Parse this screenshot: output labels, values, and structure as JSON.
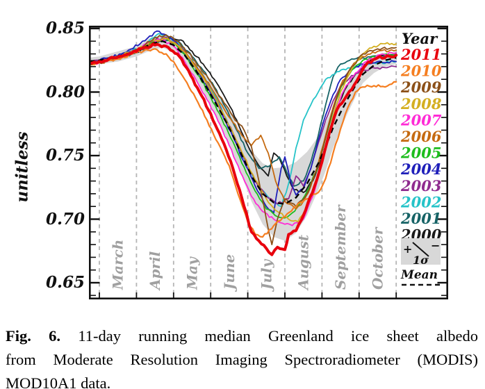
{
  "caption": {
    "label": "Fig. 6.",
    "line1": "11-day running median Greenland ice sheet albedo",
    "line2": "from Moderate Resolution Imaging Spectroradiometer (MODIS)",
    "line3": "MOD10A1 data."
  },
  "chart_data": {
    "type": "line",
    "title": "",
    "ylabel": "unitless",
    "ylim": [
      0.637,
      0.852
    ],
    "yticks": [
      "0.85",
      "0.80",
      "0.75",
      "0.70",
      "0.65"
    ],
    "ytick_values": [
      0.85,
      0.8,
      0.75,
      0.7,
      0.65
    ],
    "y_minor_step": 0.01,
    "x_axis": {
      "unit": "months after March 1",
      "gridlines_at": [
        0,
        1,
        2,
        3,
        4,
        5,
        6,
        7,
        8
      ],
      "labels": [
        "March",
        "April",
        "May",
        "June",
        "July",
        "August",
        "September",
        "October"
      ]
    },
    "grid_on": true,
    "legend_position": "inside-right",
    "colors": {
      "grid": "#b5b5b5",
      "month_label": "#a0a0a0",
      "band": "#d8d8d8",
      "mean": "#000000",
      "axis": "#111111"
    },
    "band": {
      "label": "+/- 1 sigma",
      "x": [
        -0.28,
        0,
        0.5,
        1,
        1.4,
        1.7,
        2,
        2.3,
        2.6,
        2.9,
        3.2,
        3.5,
        3.8,
        4.1,
        4.4,
        4.7,
        5,
        5.3,
        5.6,
        5.9,
        6.1,
        6.3,
        6.5,
        6.7,
        6.9,
        7.1,
        7.4,
        7.7,
        8
      ],
      "upper": [
        0.827,
        0.828,
        0.832,
        0.836,
        0.843,
        0.845,
        0.843,
        0.835,
        0.824,
        0.811,
        0.798,
        0.785,
        0.769,
        0.754,
        0.744,
        0.74,
        0.741,
        0.745,
        0.753,
        0.765,
        0.776,
        0.788,
        0.797,
        0.806,
        0.814,
        0.821,
        0.827,
        0.83,
        0.832
      ],
      "lower": [
        0.821,
        0.822,
        0.824,
        0.828,
        0.833,
        0.835,
        0.831,
        0.823,
        0.81,
        0.795,
        0.778,
        0.759,
        0.737,
        0.714,
        0.696,
        0.686,
        0.683,
        0.689,
        0.703,
        0.723,
        0.738,
        0.756,
        0.771,
        0.784,
        0.796,
        0.807,
        0.815,
        0.82,
        0.822
      ]
    },
    "mean": {
      "label": "Mean",
      "style": "dashed",
      "x": [
        -0.28,
        0,
        0.5,
        1,
        1.4,
        1.7,
        2,
        2.3,
        2.6,
        2.9,
        3.2,
        3.5,
        3.8,
        4.1,
        4.4,
        4.7,
        5,
        5.3,
        5.6,
        5.9,
        6.1,
        6.3,
        6.5,
        6.7,
        6.9,
        7.1,
        7.4,
        7.7,
        8
      ],
      "y": [
        0.824,
        0.825,
        0.828,
        0.832,
        0.838,
        0.84,
        0.837,
        0.829,
        0.817,
        0.803,
        0.788,
        0.772,
        0.753,
        0.734,
        0.72,
        0.713,
        0.712,
        0.717,
        0.728,
        0.744,
        0.757,
        0.772,
        0.784,
        0.795,
        0.805,
        0.814,
        0.821,
        0.825,
        0.827
      ]
    },
    "series": [
      {
        "name": "2000",
        "color": "#1a1a1a",
        "width": 1.8,
        "x": [
          -0.28,
          0,
          0.5,
          1,
          1.5,
          1.9,
          2.2,
          2.5,
          2.8,
          3.1,
          3.4,
          3.7,
          4,
          4.3,
          4.55,
          4.7,
          4.85,
          5.05,
          5.25,
          5.5,
          5.75,
          6,
          6.2,
          6.4,
          6.6,
          6.9,
          7.2,
          7.5,
          8
        ],
        "y": [
          0.824,
          0.825,
          0.827,
          0.831,
          0.839,
          0.843,
          0.841,
          0.832,
          0.822,
          0.81,
          0.795,
          0.778,
          0.758,
          0.742,
          0.734,
          0.752,
          0.748,
          0.734,
          0.723,
          0.721,
          0.73,
          0.748,
          0.768,
          0.787,
          0.801,
          0.814,
          0.823,
          0.828,
          0.83
        ]
      },
      {
        "name": "2001",
        "color": "#166366",
        "width": 1.8,
        "x": [
          -0.28,
          0,
          0.5,
          1,
          1.5,
          1.9,
          2.2,
          2.5,
          2.8,
          3.1,
          3.4,
          3.7,
          4,
          4.3,
          4.6,
          4.85,
          5.05,
          5.25,
          5.5,
          5.7,
          5.9,
          6.1,
          6.3,
          6.5,
          6.8,
          7.1,
          7.5,
          8
        ],
        "y": [
          0.823,
          0.824,
          0.827,
          0.831,
          0.839,
          0.842,
          0.838,
          0.828,
          0.817,
          0.804,
          0.788,
          0.77,
          0.752,
          0.74,
          0.742,
          0.749,
          0.737,
          0.726,
          0.73,
          0.745,
          0.766,
          0.79,
          0.812,
          0.822,
          0.826,
          0.827,
          0.828,
          0.828
        ]
      },
      {
        "name": "2002",
        "color": "#25c3c8",
        "width": 1.8,
        "x": [
          -0.28,
          0,
          0.5,
          1.2,
          1.6,
          1.9,
          2.2,
          2.5,
          2.8,
          3.1,
          3.4,
          3.7,
          4,
          4.3,
          4.6,
          4.9,
          5.1,
          5.3,
          5.5,
          5.7,
          5.9,
          6.1,
          6.4,
          6.7,
          7,
          7.4,
          8
        ],
        "y": [
          0.823,
          0.825,
          0.828,
          0.836,
          0.846,
          0.843,
          0.836,
          0.825,
          0.813,
          0.798,
          0.78,
          0.76,
          0.742,
          0.726,
          0.716,
          0.71,
          0.728,
          0.756,
          0.778,
          0.79,
          0.8,
          0.81,
          0.816,
          0.819,
          0.821,
          0.823,
          0.824
        ]
      },
      {
        "name": "2003",
        "color": "#8f2b8f",
        "width": 1.8,
        "x": [
          -0.28,
          0,
          0.5,
          1,
          1.5,
          1.8,
          2.1,
          2.4,
          2.7,
          3,
          3.3,
          3.6,
          3.9,
          4.2,
          4.5,
          4.8,
          5.1,
          5.3,
          5.5,
          5.7,
          5.9,
          6.1,
          6.3,
          6.5,
          6.8,
          7.1,
          7.5,
          8
        ],
        "y": [
          0.824,
          0.825,
          0.828,
          0.833,
          0.841,
          0.843,
          0.838,
          0.828,
          0.816,
          0.801,
          0.785,
          0.768,
          0.748,
          0.73,
          0.718,
          0.712,
          0.716,
          0.734,
          0.726,
          0.74,
          0.76,
          0.778,
          0.793,
          0.805,
          0.813,
          0.817,
          0.819,
          0.82
        ]
      },
      {
        "name": "2004",
        "color": "#1f1fba",
        "width": 1.8,
        "x": [
          -0.28,
          0,
          0.6,
          1.1,
          1.55,
          1.8,
          2.1,
          2.4,
          2.7,
          3,
          3.3,
          3.6,
          3.9,
          4.2,
          4.5,
          4.7,
          4.9,
          5,
          5.15,
          5.3,
          5.5,
          5.7,
          5.9,
          6.1,
          6.3,
          6.5,
          6.8,
          7.1,
          7.5,
          8
        ],
        "y": [
          0.823,
          0.825,
          0.83,
          0.838,
          0.848,
          0.845,
          0.838,
          0.827,
          0.814,
          0.799,
          0.783,
          0.765,
          0.745,
          0.726,
          0.71,
          0.705,
          0.74,
          0.749,
          0.73,
          0.719,
          0.724,
          0.74,
          0.762,
          0.782,
          0.798,
          0.81,
          0.818,
          0.822,
          0.824,
          0.824
        ]
      },
      {
        "name": "2005",
        "color": "#1dbd1d",
        "width": 1.8,
        "x": [
          -0.28,
          0,
          0.5,
          1,
          1.5,
          1.8,
          2.1,
          2.4,
          2.7,
          3,
          3.3,
          3.6,
          3.9,
          4.2,
          4.5,
          4.8,
          5,
          5.2,
          5.4,
          5.6,
          5.9,
          6.1,
          6.3,
          6.5,
          6.8,
          7.1,
          7.5,
          8
        ],
        "y": [
          0.822,
          0.824,
          0.827,
          0.832,
          0.84,
          0.842,
          0.836,
          0.825,
          0.812,
          0.796,
          0.779,
          0.761,
          0.741,
          0.722,
          0.708,
          0.702,
          0.701,
          0.705,
          0.712,
          0.722,
          0.742,
          0.764,
          0.786,
          0.803,
          0.817,
          0.825,
          0.829,
          0.83
        ]
      },
      {
        "name": "2006",
        "color": "#c56a11",
        "width": 1.8,
        "x": [
          -0.28,
          0,
          0.5,
          1,
          1.5,
          1.8,
          2.1,
          2.4,
          2.7,
          3,
          3.3,
          3.6,
          3.9,
          4.1,
          4.35,
          4.55,
          4.75,
          5,
          5.3,
          5.5,
          5.7,
          5.9,
          6.1,
          6.3,
          6.5,
          6.8,
          7.1,
          7.5,
          8
        ],
        "y": [
          0.822,
          0.823,
          0.826,
          0.831,
          0.84,
          0.842,
          0.837,
          0.828,
          0.817,
          0.804,
          0.79,
          0.776,
          0.764,
          0.758,
          0.766,
          0.752,
          0.73,
          0.714,
          0.708,
          0.714,
          0.726,
          0.744,
          0.766,
          0.788,
          0.805,
          0.82,
          0.828,
          0.832,
          0.833
        ]
      },
      {
        "name": "2007",
        "color": "#ff2bd6",
        "width": 1.8,
        "x": [
          -0.28,
          0,
          0.5,
          1,
          1.4,
          1.7,
          2,
          2.3,
          2.6,
          2.9,
          3.2,
          3.5,
          3.8,
          4.1,
          4.4,
          4.7,
          5,
          5.2,
          5.5,
          5.8,
          6,
          6.2,
          6.4,
          6.6,
          6.9,
          7.2,
          7.5,
          8
        ],
        "y": [
          0.822,
          0.823,
          0.827,
          0.833,
          0.84,
          0.841,
          0.836,
          0.824,
          0.81,
          0.794,
          0.777,
          0.758,
          0.737,
          0.718,
          0.706,
          0.7,
          0.696,
          0.695,
          0.7,
          0.722,
          0.745,
          0.768,
          0.788,
          0.802,
          0.815,
          0.824,
          0.829,
          0.831
        ]
      },
      {
        "name": "2008",
        "color": "#d4af21",
        "width": 1.8,
        "x": [
          -0.28,
          0,
          0.5,
          1,
          1.5,
          1.8,
          2.1,
          2.4,
          2.7,
          3,
          3.3,
          3.6,
          3.9,
          4.2,
          4.5,
          4.8,
          5.1,
          5.35,
          5.6,
          5.9,
          6.1,
          6.3,
          6.5,
          6.8,
          7.1,
          7.4,
          7.7,
          8
        ],
        "y": [
          0.823,
          0.824,
          0.828,
          0.833,
          0.841,
          0.842,
          0.837,
          0.827,
          0.815,
          0.801,
          0.785,
          0.768,
          0.749,
          0.731,
          0.716,
          0.706,
          0.7,
          0.698,
          0.71,
          0.734,
          0.758,
          0.781,
          0.8,
          0.818,
          0.83,
          0.836,
          0.838,
          0.838
        ]
      },
      {
        "name": "2009",
        "color": "#8c5018",
        "width": 1.8,
        "x": [
          -0.28,
          0,
          0.5,
          1.1,
          1.5,
          1.8,
          2.1,
          2.4,
          2.7,
          3,
          3.3,
          3.6,
          3.9,
          4.1,
          4.3,
          4.5,
          4.65,
          4.8,
          5,
          5.3,
          5.6,
          5.9,
          6.1,
          6.3,
          6.5,
          6.8,
          7.1,
          7.5,
          8
        ],
        "y": [
          0.822,
          0.823,
          0.827,
          0.834,
          0.843,
          0.845,
          0.84,
          0.831,
          0.82,
          0.808,
          0.795,
          0.781,
          0.77,
          0.757,
          0.73,
          0.7,
          0.68,
          0.7,
          0.716,
          0.71,
          0.72,
          0.742,
          0.764,
          0.786,
          0.804,
          0.82,
          0.83,
          0.834,
          0.835
        ]
      },
      {
        "name": "2010",
        "color": "#f57e20",
        "width": 2.2,
        "x": [
          -0.28,
          0,
          0.5,
          1,
          1.5,
          1.8,
          2,
          2.3,
          2.6,
          2.9,
          3.2,
          3.5,
          3.8,
          4,
          4.2,
          4.4,
          4.7,
          5,
          5.3,
          5.6,
          5.9,
          6.1,
          6.3,
          6.5,
          6.7,
          6.9,
          7.1,
          7.4,
          7.7,
          8
        ],
        "y": [
          0.822,
          0.823,
          0.826,
          0.831,
          0.834,
          0.83,
          0.824,
          0.81,
          0.795,
          0.778,
          0.76,
          0.742,
          0.715,
          0.698,
          0.688,
          0.686,
          0.695,
          0.702,
          0.71,
          0.716,
          0.721,
          0.732,
          0.752,
          0.771,
          0.788,
          0.8,
          0.804,
          0.805,
          0.804,
          0.808
        ]
      },
      {
        "name": "2011",
        "color": "#e8000d",
        "width": 4,
        "x": [
          -0.28,
          0,
          0.4,
          0.8,
          1.2,
          1.5,
          1.8,
          2.1,
          2.4,
          2.7,
          3,
          3.3,
          3.6,
          3.9,
          4.1,
          4.3,
          4.5,
          4.65,
          4.8,
          5,
          5.1,
          5.3,
          5.5,
          5.8,
          6,
          6.2,
          6.4,
          6.6,
          6.8,
          7,
          7.2,
          7.5,
          8
        ],
        "y": [
          0.823,
          0.824,
          0.827,
          0.83,
          0.835,
          0.837,
          0.836,
          0.83,
          0.817,
          0.8,
          0.783,
          0.763,
          0.74,
          0.71,
          0.69,
          0.683,
          0.677,
          0.672,
          0.678,
          0.676,
          0.688,
          0.691,
          0.703,
          0.726,
          0.745,
          0.768,
          0.786,
          0.794,
          0.802,
          0.812,
          0.822,
          0.827,
          0.829
        ]
      }
    ],
    "legend": {
      "title": "Year",
      "order": [
        "2011",
        "2010",
        "2009",
        "2008",
        "2007",
        "2006",
        "2005",
        "2004",
        "2003",
        "2002",
        "2001",
        "2000"
      ],
      "sigma_plus": "+",
      "sigma_minus": "−",
      "sigma_label": "1σ",
      "mean_label": "Mean"
    }
  }
}
